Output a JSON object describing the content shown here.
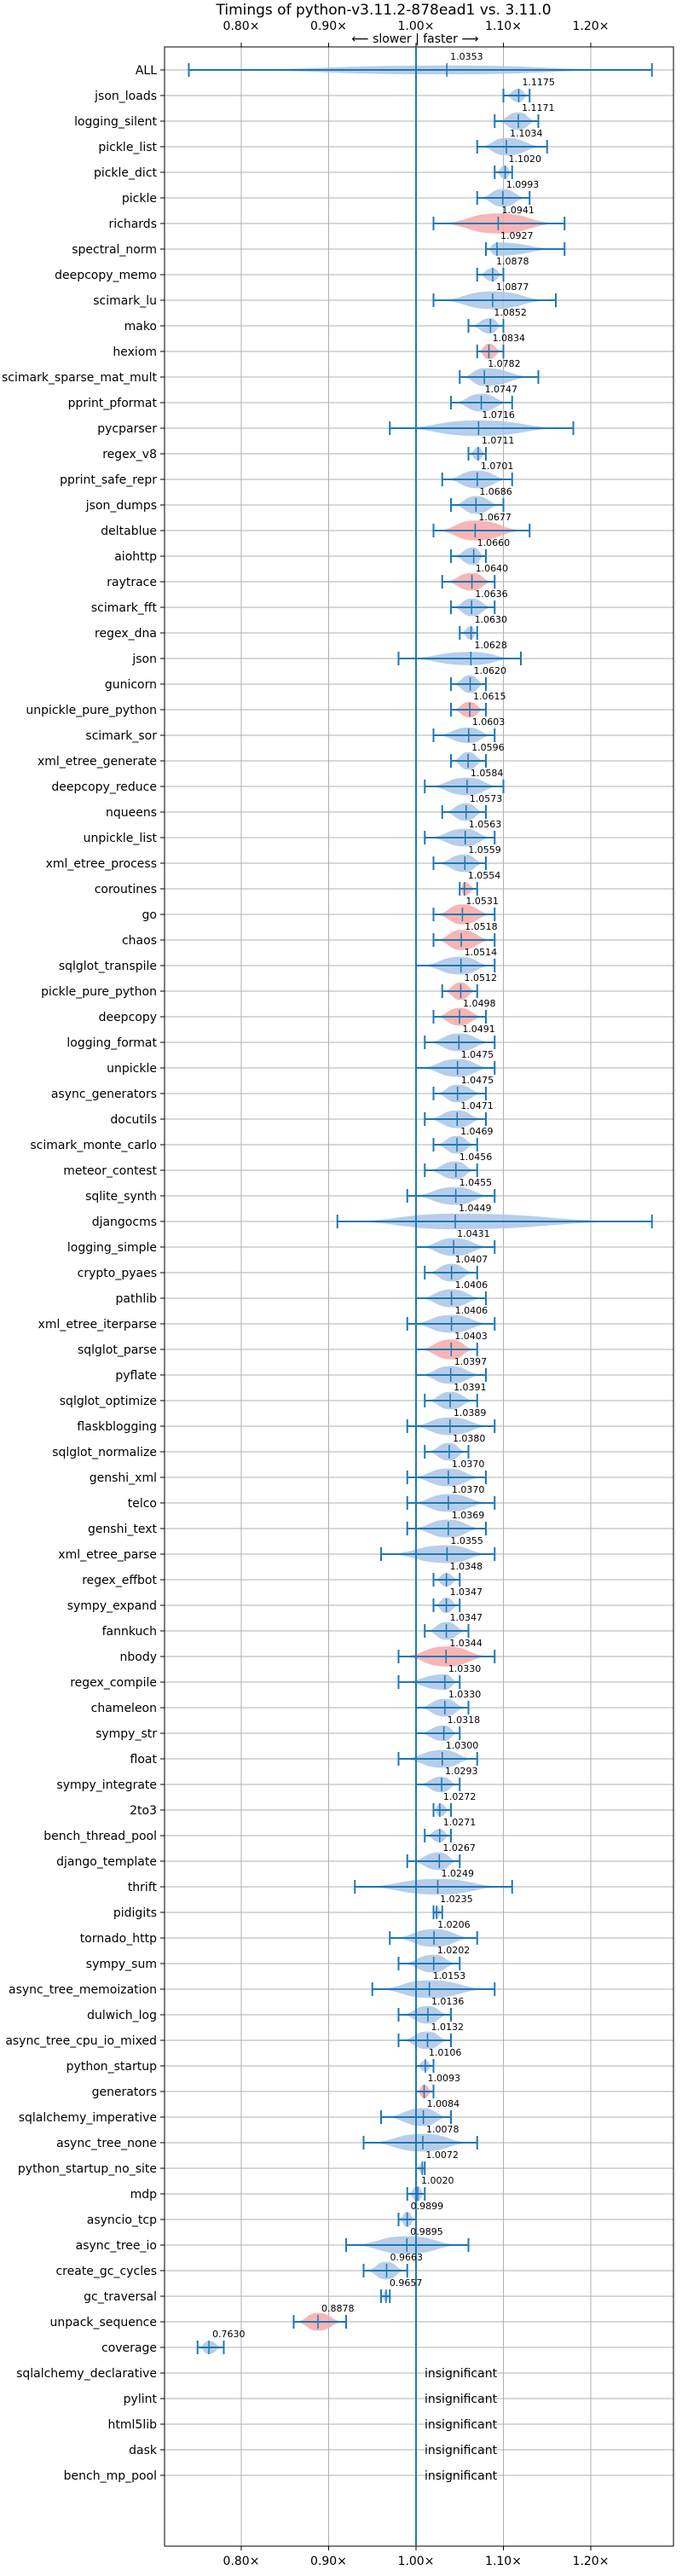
{
  "chart_data": {
    "type": "violin",
    "title": "Timings of python-v3.11.2-878ead1 vs. 3.11.0",
    "direction_hint": "⟵ slower | faster ⟶",
    "x_ticks": [
      "0.80×",
      "0.90×",
      "1.00×",
      "1.10×",
      "1.20×"
    ],
    "xlim": [
      0.72,
      1.24
    ],
    "baseline": 1.0,
    "grid": true,
    "colors": {
      "faster": "#aac6e6",
      "slower": "#f7a8a8",
      "whisker": "#1f77b4",
      "baseline": "#1f77b4",
      "grid": "#b0b0b0"
    },
    "insignificant_text": "insignificant",
    "benchmarks": [
      {
        "name": "ALL",
        "value": 1.0353,
        "label": "1.0353",
        "lo": 0.74,
        "hi": 1.27,
        "w": 0.4,
        "color": "faster"
      },
      {
        "name": "json_loads",
        "value": 1.1175,
        "label": "1.1175",
        "lo": 1.1,
        "hi": 1.13,
        "w": 0.6,
        "color": "faster"
      },
      {
        "name": "logging_silent",
        "value": 1.1171,
        "label": "1.1171",
        "lo": 1.09,
        "hi": 1.14,
        "w": 0.8,
        "color": "faster"
      },
      {
        "name": "pickle_list",
        "value": 1.1034,
        "label": "1.1034",
        "lo": 1.07,
        "hi": 1.15,
        "w": 0.8,
        "color": "faster"
      },
      {
        "name": "pickle_dict",
        "value": 1.102,
        "label": "1.1020",
        "lo": 1.09,
        "hi": 1.11,
        "w": 0.6,
        "color": "faster"
      },
      {
        "name": "pickle",
        "value": 1.0993,
        "label": "1.0993",
        "lo": 1.07,
        "hi": 1.13,
        "w": 0.8,
        "color": "faster"
      },
      {
        "name": "richards",
        "value": 1.0941,
        "label": "1.0941",
        "lo": 1.02,
        "hi": 1.17,
        "w": 0.9,
        "color": "slower"
      },
      {
        "name": "spectral_norm",
        "value": 1.0927,
        "label": "1.0927",
        "lo": 1.08,
        "hi": 1.17,
        "w": 0.6,
        "color": "faster"
      },
      {
        "name": "deepcopy_memo",
        "value": 1.0878,
        "label": "1.0878",
        "lo": 1.07,
        "hi": 1.1,
        "w": 0.6,
        "color": "faster"
      },
      {
        "name": "scimark_lu",
        "value": 1.0877,
        "label": "1.0877",
        "lo": 1.02,
        "hi": 1.16,
        "w": 0.8,
        "color": "faster"
      },
      {
        "name": "mako",
        "value": 1.0852,
        "label": "1.0852",
        "lo": 1.06,
        "hi": 1.1,
        "w": 0.7,
        "color": "faster"
      },
      {
        "name": "hexiom",
        "value": 1.0834,
        "label": "1.0834",
        "lo": 1.07,
        "hi": 1.1,
        "w": 0.7,
        "color": "slower"
      },
      {
        "name": "scimark_sparse_mat_mult",
        "value": 1.0782,
        "label": "1.0782",
        "lo": 1.05,
        "hi": 1.14,
        "w": 0.8,
        "color": "faster"
      },
      {
        "name": "pprint_pformat",
        "value": 1.0747,
        "label": "1.0747",
        "lo": 1.04,
        "hi": 1.11,
        "w": 0.8,
        "color": "faster"
      },
      {
        "name": "pycparser",
        "value": 1.0716,
        "label": "1.0716",
        "lo": 0.97,
        "hi": 1.18,
        "w": 0.7,
        "color": "faster"
      },
      {
        "name": "regex_v8",
        "value": 1.0711,
        "label": "1.0711",
        "lo": 1.06,
        "hi": 1.08,
        "w": 0.6,
        "color": "faster"
      },
      {
        "name": "pprint_safe_repr",
        "value": 1.0701,
        "label": "1.0701",
        "lo": 1.03,
        "hi": 1.11,
        "w": 0.8,
        "color": "faster"
      },
      {
        "name": "json_dumps",
        "value": 1.0686,
        "label": "1.0686",
        "lo": 1.04,
        "hi": 1.1,
        "w": 0.8,
        "color": "faster"
      },
      {
        "name": "deltablue",
        "value": 1.0677,
        "label": "1.0677",
        "lo": 1.02,
        "hi": 1.13,
        "w": 0.9,
        "color": "slower"
      },
      {
        "name": "aiohttp",
        "value": 1.066,
        "label": "1.0660",
        "lo": 1.04,
        "hi": 1.08,
        "w": 0.8,
        "color": "faster"
      },
      {
        "name": "raytrace",
        "value": 1.064,
        "label": "1.0640",
        "lo": 1.03,
        "hi": 1.09,
        "w": 0.8,
        "color": "slower"
      },
      {
        "name": "scimark_fft",
        "value": 1.0636,
        "label": "1.0636",
        "lo": 1.04,
        "hi": 1.09,
        "w": 0.8,
        "color": "faster"
      },
      {
        "name": "regex_dna",
        "value": 1.063,
        "label": "1.0630",
        "lo": 1.05,
        "hi": 1.07,
        "w": 0.6,
        "color": "faster"
      },
      {
        "name": "json",
        "value": 1.0628,
        "label": "1.0628",
        "lo": 0.98,
        "hi": 1.12,
        "w": 0.6,
        "color": "faster"
      },
      {
        "name": "gunicorn",
        "value": 1.062,
        "label": "1.0620",
        "lo": 1.04,
        "hi": 1.08,
        "w": 0.8,
        "color": "faster"
      },
      {
        "name": "unpickle_pure_python",
        "value": 1.0615,
        "label": "1.0615",
        "lo": 1.04,
        "hi": 1.08,
        "w": 0.7,
        "color": "slower"
      },
      {
        "name": "scimark_sor",
        "value": 1.0603,
        "label": "1.0603",
        "lo": 1.02,
        "hi": 1.09,
        "w": 0.7,
        "color": "faster"
      },
      {
        "name": "xml_etree_generate",
        "value": 1.0596,
        "label": "1.0596",
        "lo": 1.04,
        "hi": 1.08,
        "w": 0.8,
        "color": "faster"
      },
      {
        "name": "deepcopy_reduce",
        "value": 1.0584,
        "label": "1.0584",
        "lo": 1.01,
        "hi": 1.1,
        "w": 0.8,
        "color": "faster"
      },
      {
        "name": "nqueens",
        "value": 1.0573,
        "label": "1.0573",
        "lo": 1.03,
        "hi": 1.08,
        "w": 0.8,
        "color": "faster"
      },
      {
        "name": "unpickle_list",
        "value": 1.0563,
        "label": "1.0563",
        "lo": 1.01,
        "hi": 1.09,
        "w": 0.8,
        "color": "faster"
      },
      {
        "name": "xml_etree_process",
        "value": 1.0559,
        "label": "1.0559",
        "lo": 1.02,
        "hi": 1.08,
        "w": 0.8,
        "color": "faster"
      },
      {
        "name": "coroutines",
        "value": 1.0554,
        "label": "1.0554",
        "lo": 1.05,
        "hi": 1.07,
        "w": 0.6,
        "color": "slower"
      },
      {
        "name": "go",
        "value": 1.0531,
        "label": "1.0531",
        "lo": 1.02,
        "hi": 1.09,
        "w": 0.9,
        "color": "slower"
      },
      {
        "name": "chaos",
        "value": 1.0518,
        "label": "1.0518",
        "lo": 1.02,
        "hi": 1.09,
        "w": 0.9,
        "color": "slower"
      },
      {
        "name": "sqlglot_transpile",
        "value": 1.0514,
        "label": "1.0514",
        "lo": 1.0,
        "hi": 1.09,
        "w": 0.8,
        "color": "faster"
      },
      {
        "name": "pickle_pure_python",
        "value": 1.0512,
        "label": "1.0512",
        "lo": 1.03,
        "hi": 1.07,
        "w": 0.8,
        "color": "slower"
      },
      {
        "name": "deepcopy",
        "value": 1.0498,
        "label": "1.0498",
        "lo": 1.02,
        "hi": 1.08,
        "w": 0.8,
        "color": "slower"
      },
      {
        "name": "logging_format",
        "value": 1.0491,
        "label": "1.0491",
        "lo": 1.01,
        "hi": 1.09,
        "w": 0.8,
        "color": "faster"
      },
      {
        "name": "unpickle",
        "value": 1.0475,
        "label": "1.0475",
        "lo": 1.0,
        "hi": 1.09,
        "w": 0.8,
        "color": "faster"
      },
      {
        "name": "async_generators",
        "value": 1.0475,
        "label": "1.0475",
        "lo": 1.02,
        "hi": 1.08,
        "w": 0.8,
        "color": "faster"
      },
      {
        "name": "docutils",
        "value": 1.0471,
        "label": "1.0471",
        "lo": 1.01,
        "hi": 1.08,
        "w": 0.8,
        "color": "faster"
      },
      {
        "name": "scimark_monte_carlo",
        "value": 1.0469,
        "label": "1.0469",
        "lo": 1.02,
        "hi": 1.07,
        "w": 0.8,
        "color": "faster"
      },
      {
        "name": "meteor_contest",
        "value": 1.0456,
        "label": "1.0456",
        "lo": 1.01,
        "hi": 1.07,
        "w": 0.8,
        "color": "faster"
      },
      {
        "name": "sqlite_synth",
        "value": 1.0455,
        "label": "1.0455",
        "lo": 0.99,
        "hi": 1.09,
        "w": 0.8,
        "color": "faster"
      },
      {
        "name": "djangocms",
        "value": 1.0449,
        "label": "1.0449",
        "lo": 0.91,
        "hi": 1.27,
        "w": 0.7,
        "color": "faster"
      },
      {
        "name": "logging_simple",
        "value": 1.0431,
        "label": "1.0431",
        "lo": 1.0,
        "hi": 1.09,
        "w": 0.8,
        "color": "faster"
      },
      {
        "name": "crypto_pyaes",
        "value": 1.0407,
        "label": "1.0407",
        "lo": 1.01,
        "hi": 1.07,
        "w": 0.8,
        "color": "faster"
      },
      {
        "name": "pathlib",
        "value": 1.0406,
        "label": "1.0406",
        "lo": 1.0,
        "hi": 1.08,
        "w": 0.8,
        "color": "faster"
      },
      {
        "name": "xml_etree_iterparse",
        "value": 1.0406,
        "label": "1.0406",
        "lo": 0.99,
        "hi": 1.09,
        "w": 0.8,
        "color": "faster"
      },
      {
        "name": "sqlglot_parse",
        "value": 1.0403,
        "label": "1.0403",
        "lo": 1.0,
        "hi": 1.07,
        "w": 0.9,
        "color": "slower"
      },
      {
        "name": "pyflate",
        "value": 1.0397,
        "label": "1.0397",
        "lo": 1.0,
        "hi": 1.08,
        "w": 0.8,
        "color": "faster"
      },
      {
        "name": "sqlglot_optimize",
        "value": 1.0391,
        "label": "1.0391",
        "lo": 1.01,
        "hi": 1.07,
        "w": 0.8,
        "color": "faster"
      },
      {
        "name": "flaskblogging",
        "value": 1.0389,
        "label": "1.0389",
        "lo": 0.99,
        "hi": 1.09,
        "w": 0.8,
        "color": "faster"
      },
      {
        "name": "sqlglot_normalize",
        "value": 1.038,
        "label": "1.0380",
        "lo": 1.01,
        "hi": 1.06,
        "w": 0.8,
        "color": "faster"
      },
      {
        "name": "genshi_xml",
        "value": 1.037,
        "label": "1.0370",
        "lo": 0.99,
        "hi": 1.08,
        "w": 0.8,
        "color": "faster"
      },
      {
        "name": "telco",
        "value": 1.037,
        "label": "1.0370",
        "lo": 0.99,
        "hi": 1.09,
        "w": 0.8,
        "color": "faster"
      },
      {
        "name": "genshi_text",
        "value": 1.0369,
        "label": "1.0369",
        "lo": 0.99,
        "hi": 1.08,
        "w": 0.8,
        "color": "faster"
      },
      {
        "name": "xml_etree_parse",
        "value": 1.0355,
        "label": "1.0355",
        "lo": 0.96,
        "hi": 1.09,
        "w": 0.8,
        "color": "faster"
      },
      {
        "name": "regex_effbot",
        "value": 1.0348,
        "label": "1.0348",
        "lo": 1.02,
        "hi": 1.05,
        "w": 0.6,
        "color": "faster"
      },
      {
        "name": "sympy_expand",
        "value": 1.0347,
        "label": "1.0347",
        "lo": 1.02,
        "hi": 1.05,
        "w": 0.7,
        "color": "faster"
      },
      {
        "name": "fannkuch",
        "value": 1.0347,
        "label": "1.0347",
        "lo": 1.01,
        "hi": 1.06,
        "w": 0.8,
        "color": "faster"
      },
      {
        "name": "nbody",
        "value": 1.0344,
        "label": "1.0344",
        "lo": 0.98,
        "hi": 1.09,
        "w": 0.9,
        "color": "slower"
      },
      {
        "name": "regex_compile",
        "value": 1.033,
        "label": "1.0330",
        "lo": 0.98,
        "hi": 1.05,
        "w": 0.7,
        "color": "faster"
      },
      {
        "name": "chameleon",
        "value": 1.033,
        "label": "1.0330",
        "lo": 1.0,
        "hi": 1.06,
        "w": 0.8,
        "color": "faster"
      },
      {
        "name": "sympy_str",
        "value": 1.0318,
        "label": "1.0318",
        "lo": 1.0,
        "hi": 1.05,
        "w": 0.7,
        "color": "faster"
      },
      {
        "name": "float",
        "value": 1.03,
        "label": "1.0300",
        "lo": 0.98,
        "hi": 1.07,
        "w": 0.8,
        "color": "faster"
      },
      {
        "name": "sympy_integrate",
        "value": 1.0293,
        "label": "1.0293",
        "lo": 1.0,
        "hi": 1.05,
        "w": 0.7,
        "color": "faster"
      },
      {
        "name": "2to3",
        "value": 1.0272,
        "label": "1.0272",
        "lo": 1.02,
        "hi": 1.04,
        "w": 0.6,
        "color": "faster"
      },
      {
        "name": "bench_thread_pool",
        "value": 1.0271,
        "label": "1.0271",
        "lo": 1.01,
        "hi": 1.04,
        "w": 0.6,
        "color": "faster"
      },
      {
        "name": "django_template",
        "value": 1.0267,
        "label": "1.0267",
        "lo": 0.99,
        "hi": 1.05,
        "w": 0.8,
        "color": "faster"
      },
      {
        "name": "thrift",
        "value": 1.0249,
        "label": "1.0249",
        "lo": 0.93,
        "hi": 1.11,
        "w": 0.7,
        "color": "faster"
      },
      {
        "name": "pidigits",
        "value": 1.0235,
        "label": "1.0235",
        "lo": 1.02,
        "hi": 1.03,
        "w": 0.6,
        "color": "faster"
      },
      {
        "name": "tornado_http",
        "value": 1.0206,
        "label": "1.0206",
        "lo": 0.97,
        "hi": 1.07,
        "w": 0.8,
        "color": "faster"
      },
      {
        "name": "sympy_sum",
        "value": 1.0202,
        "label": "1.0202",
        "lo": 0.98,
        "hi": 1.05,
        "w": 0.8,
        "color": "faster"
      },
      {
        "name": "async_tree_memoization",
        "value": 1.0153,
        "label": "1.0153",
        "lo": 0.95,
        "hi": 1.09,
        "w": 0.8,
        "color": "faster"
      },
      {
        "name": "dulwich_log",
        "value": 1.0136,
        "label": "1.0136",
        "lo": 0.98,
        "hi": 1.04,
        "w": 0.8,
        "color": "faster"
      },
      {
        "name": "async_tree_cpu_io_mixed",
        "value": 1.0132,
        "label": "1.0132",
        "lo": 0.98,
        "hi": 1.04,
        "w": 0.8,
        "color": "faster"
      },
      {
        "name": "python_startup",
        "value": 1.0106,
        "label": "1.0106",
        "lo": 1.0,
        "hi": 1.02,
        "w": 0.5,
        "color": "faster"
      },
      {
        "name": "generators",
        "value": 1.0093,
        "label": "1.0093",
        "lo": 1.0,
        "hi": 1.02,
        "w": 0.6,
        "color": "slower"
      },
      {
        "name": "sqlalchemy_imperative",
        "value": 1.0084,
        "label": "1.0084",
        "lo": 0.96,
        "hi": 1.04,
        "w": 0.8,
        "color": "faster"
      },
      {
        "name": "async_tree_none",
        "value": 1.0078,
        "label": "1.0078",
        "lo": 0.94,
        "hi": 1.07,
        "w": 0.8,
        "color": "faster"
      },
      {
        "name": "python_startup_no_site",
        "value": 1.0072,
        "label": "1.0072",
        "lo": 1.0,
        "hi": 1.01,
        "w": 0.5,
        "color": "faster"
      },
      {
        "name": "mdp",
        "value": 1.002,
        "label": "1.0020",
        "lo": 0.99,
        "hi": 1.01,
        "w": 0.7,
        "color": "faster"
      },
      {
        "name": "asyncio_tcp",
        "value": 0.9899,
        "label": "0.9899",
        "lo": 0.98,
        "hi": 1.0,
        "w": 0.7,
        "color": "faster"
      },
      {
        "name": "async_tree_io",
        "value": 0.9895,
        "label": "0.9895",
        "lo": 0.92,
        "hi": 1.06,
        "w": 0.8,
        "color": "faster"
      },
      {
        "name": "create_gc_cycles",
        "value": 0.9663,
        "label": "0.9663",
        "lo": 0.94,
        "hi": 0.99,
        "w": 0.8,
        "color": "faster"
      },
      {
        "name": "gc_traversal",
        "value": 0.9657,
        "label": "0.9657",
        "lo": 0.96,
        "hi": 0.97,
        "w": 0.5,
        "color": "faster"
      },
      {
        "name": "unpack_sequence",
        "value": 0.8878,
        "label": "0.8878",
        "lo": 0.86,
        "hi": 0.92,
        "w": 0.8,
        "color": "slower"
      },
      {
        "name": "coverage",
        "value": 0.763,
        "label": "0.7630",
        "lo": 0.75,
        "hi": 0.78,
        "w": 0.6,
        "color": "faster"
      },
      {
        "name": "sqlalchemy_declarative",
        "insignificant": true
      },
      {
        "name": "pylint",
        "insignificant": true
      },
      {
        "name": "html5lib",
        "insignificant": true
      },
      {
        "name": "dask",
        "insignificant": true
      },
      {
        "name": "bench_mp_pool",
        "insignificant": true
      }
    ]
  }
}
